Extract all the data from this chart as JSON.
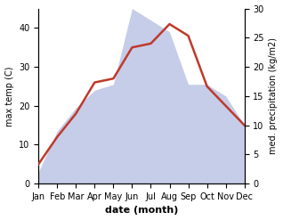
{
  "months": [
    "Jan",
    "Feb",
    "Mar",
    "Apr",
    "May",
    "Jun",
    "Jul",
    "Aug",
    "Sep",
    "Oct",
    "Nov",
    "Dec"
  ],
  "temperature": [
    5,
    12,
    18,
    26,
    27,
    35,
    36,
    41,
    38,
    25,
    20,
    15
  ],
  "precipitation": [
    2,
    9,
    13,
    16,
    17,
    30,
    28,
    26,
    17,
    17,
    15,
    10
  ],
  "temp_color": "#c0392b",
  "precip_fill_color": "#c5cde8",
  "precip_edge_color": "#aab4d8",
  "temp_ylim": [
    0,
    45
  ],
  "precip_ylim": [
    0,
    30
  ],
  "temp_yticks": [
    0,
    10,
    20,
    30,
    40
  ],
  "precip_yticks": [
    0,
    5,
    10,
    15,
    20,
    25,
    30
  ],
  "xlabel": "date (month)",
  "ylabel_left": "max temp (C)",
  "ylabel_right": "med. precipitation (kg/m2)",
  "xlabel_fontsize": 8,
  "ylabel_fontsize": 7,
  "tick_fontsize": 7,
  "line_width": 1.8,
  "background_color": "#ffffff"
}
